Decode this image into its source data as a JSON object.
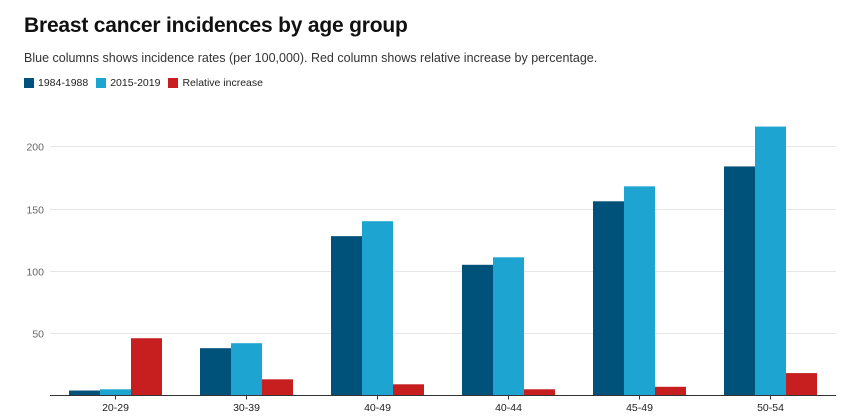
{
  "chart_data": {
    "type": "bar",
    "title": "Breast cancer incidences by age group",
    "subtitle": "Blue columns shows incidence rates (per 100,000). Red column shows relative increase by percentage.",
    "categories": [
      "20-29",
      "30-39",
      "40-49",
      "40-44",
      "45-49",
      "50-54"
    ],
    "series": [
      {
        "name": "1984-1988",
        "color": "#00527a",
        "values": [
          4,
          38,
          128,
          105,
          156,
          184
        ]
      },
      {
        "name": "2015-2019",
        "color": "#1ea4d0",
        "values": [
          5,
          42,
          140,
          111,
          168,
          216
        ]
      },
      {
        "name": "Relative increase",
        "color": "#c71f1f",
        "values": [
          46,
          13,
          9,
          5,
          7,
          18
        ]
      }
    ],
    "yticks": [
      "50",
      "100",
      "150",
      "200"
    ],
    "ylim": [
      0,
      230
    ],
    "grid": true,
    "legend": "top-left",
    "xlabel": "",
    "ylabel": ""
  }
}
